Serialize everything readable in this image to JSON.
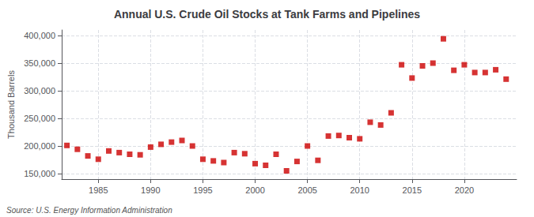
{
  "chart_data": {
    "type": "scatter",
    "title": "Annual U.S. Crude Oil Stocks at Tank Farms and Pipelines",
    "ylabel": "Thousand Barrels",
    "annotations": [
      "Source: U.S. Energy Information Administration"
    ],
    "color": "#cc0000",
    "marker": "square",
    "grid": true,
    "xlim": [
      1981.5,
      2025
    ],
    "xticks": [
      1985,
      1990,
      1995,
      2000,
      2005,
      2010,
      2015,
      2020
    ],
    "ylim": [
      140000,
      410000
    ],
    "yticks": [
      {
        "value": 150000,
        "label": "150,000"
      },
      {
        "value": 200000,
        "label": "200,000"
      },
      {
        "value": 250000,
        "label": "250,000"
      },
      {
        "value": 300000,
        "label": "300,000"
      },
      {
        "value": 350000,
        "label": "350,000"
      },
      {
        "value": 400000,
        "label": "400,000"
      }
    ],
    "x": [
      1982,
      1983,
      1984,
      1985,
      1986,
      1987,
      1988,
      1989,
      1990,
      1991,
      1992,
      1993,
      1994,
      1995,
      1996,
      1997,
      1998,
      1999,
      2000,
      2001,
      2002,
      2003,
      2004,
      2005,
      2006,
      2007,
      2008,
      2009,
      2010,
      2011,
      2012,
      2013,
      2014,
      2015,
      2016,
      2017,
      2018,
      2019,
      2020,
      2021,
      2022,
      2023,
      2024
    ],
    "values": [
      201000,
      194000,
      182000,
      176000,
      191000,
      188000,
      185000,
      184000,
      198000,
      203000,
      207000,
      210000,
      200000,
      176000,
      173000,
      170000,
      188000,
      186000,
      168000,
      165000,
      185000,
      155000,
      172000,
      200000,
      174000,
      218000,
      219000,
      215000,
      213000,
      243000,
      238000,
      260000,
      347000,
      323000,
      345000,
      350000,
      394000,
      337000,
      347000,
      333000,
      333000,
      338000,
      321000
    ]
  }
}
